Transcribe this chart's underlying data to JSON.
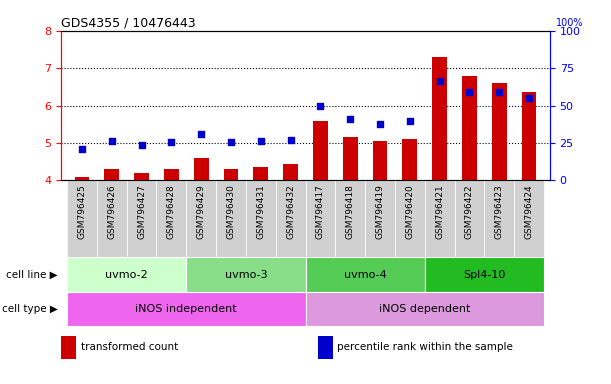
{
  "title": "GDS4355 / 10476443",
  "samples": [
    "GSM796425",
    "GSM796426",
    "GSM796427",
    "GSM796428",
    "GSM796429",
    "GSM796430",
    "GSM796431",
    "GSM796432",
    "GSM796417",
    "GSM796418",
    "GSM796419",
    "GSM796420",
    "GSM796421",
    "GSM796422",
    "GSM796423",
    "GSM796424"
  ],
  "bar_values": [
    4.1,
    4.3,
    4.2,
    4.3,
    4.6,
    4.3,
    4.35,
    4.45,
    5.6,
    5.15,
    5.05,
    5.1,
    7.3,
    6.8,
    6.6,
    6.35
  ],
  "dot_values": [
    4.85,
    5.05,
    4.95,
    5.02,
    5.25,
    5.02,
    5.05,
    5.08,
    5.98,
    5.65,
    5.5,
    5.6,
    6.65,
    6.35,
    6.35,
    6.2
  ],
  "bar_color": "#cc0000",
  "dot_color": "#0000cc",
  "ylim": [
    4.0,
    8.0
  ],
  "yticks_left": [
    4,
    5,
    6,
    7,
    8
  ],
  "yticks_right": [
    0,
    25,
    50,
    75,
    100
  ],
  "cell_line_groups": [
    {
      "label": "uvmo-2",
      "start": 0,
      "end": 3,
      "color": "#ccffcc"
    },
    {
      "label": "uvmo-3",
      "start": 4,
      "end": 7,
      "color": "#88dd88"
    },
    {
      "label": "uvmo-4",
      "start": 8,
      "end": 11,
      "color": "#55cc55"
    },
    {
      "label": "Spl4-10",
      "start": 12,
      "end": 15,
      "color": "#22bb22"
    }
  ],
  "cell_type_groups": [
    {
      "label": "iNOS independent",
      "start": 0,
      "end": 7,
      "color": "#ee66ee"
    },
    {
      "label": "iNOS dependent",
      "start": 8,
      "end": 15,
      "color": "#dd99dd"
    }
  ],
  "legend_items": [
    {
      "label": "transformed count",
      "color": "#cc0000"
    },
    {
      "label": "percentile rank within the sample",
      "color": "#0000cc"
    }
  ],
  "row_label_cell_line": "cell line",
  "row_label_cell_type": "cell type",
  "grid_yticks": [
    5,
    6,
    7
  ]
}
